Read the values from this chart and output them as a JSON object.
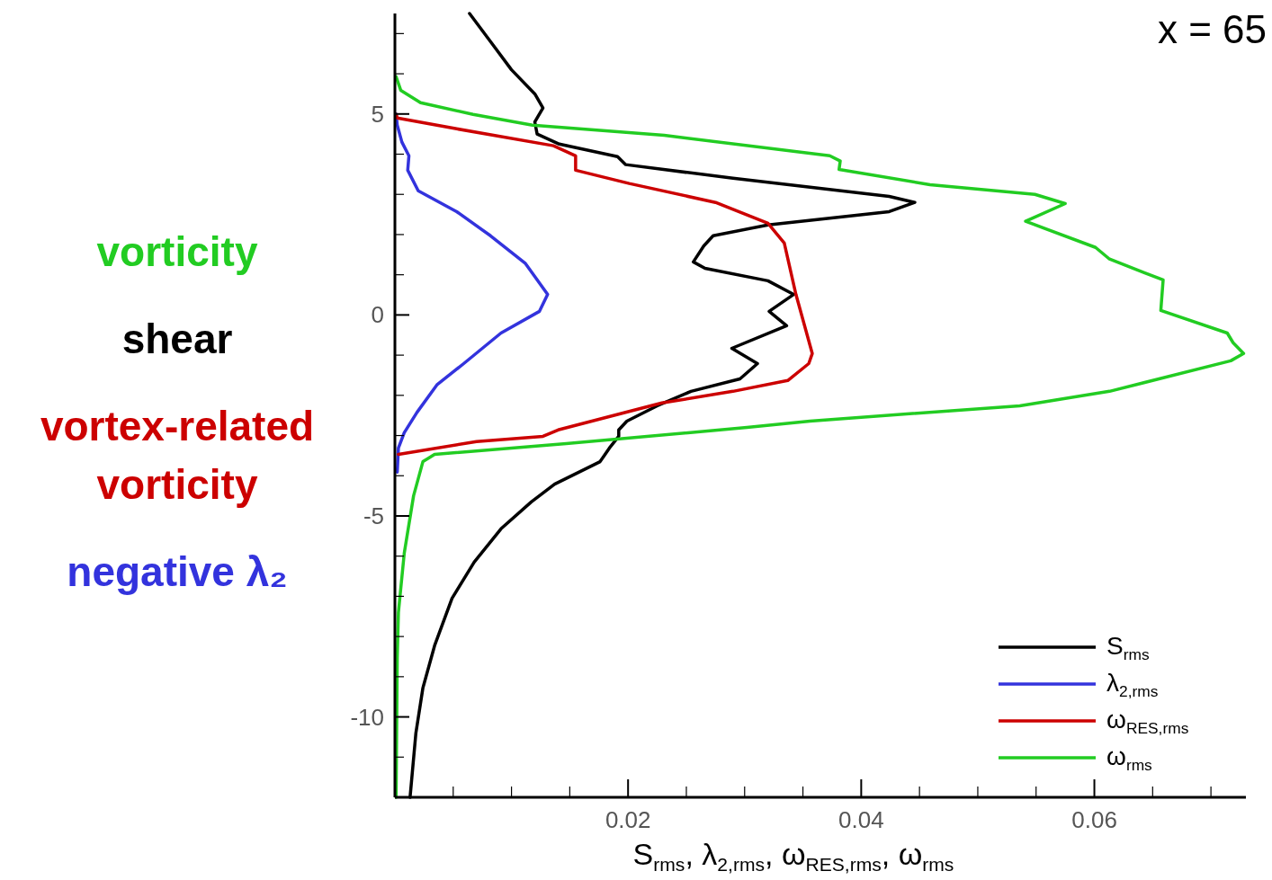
{
  "chart_data": {
    "type": "line",
    "title": "x = 65",
    "xlabel": "S$_{rms}$, λ$_{2,rms}$, ω$_{RES,rms}$, ω$_{rms}$",
    "annotations": [
      "vorticity",
      "shear",
      "vortex-related vorticity",
      "negative λ₂"
    ],
    "xlim": [
      0,
      0.073
    ],
    "ylim": [
      -12,
      7.5
    ],
    "xticks": [
      {
        "value": 0.005,
        "label": null
      },
      {
        "value": 0.01,
        "label": null
      },
      {
        "value": 0.015,
        "label": null
      },
      {
        "value": 0.02,
        "label": "0.02"
      },
      {
        "value": 0.025,
        "label": null
      },
      {
        "value": 0.03,
        "label": null
      },
      {
        "value": 0.035,
        "label": null
      },
      {
        "value": 0.04,
        "label": "0.04"
      },
      {
        "value": 0.045,
        "label": null
      },
      {
        "value": 0.05,
        "label": null
      },
      {
        "value": 0.055,
        "label": null
      },
      {
        "value": 0.06,
        "label": "0.06"
      },
      {
        "value": 0.065,
        "label": null
      },
      {
        "value": 0.07,
        "label": null
      }
    ],
    "yticks": [
      {
        "value": -11,
        "label": null
      },
      -10,
      {
        "value": -9,
        "label": null
      },
      {
        "value": -8,
        "label": null
      },
      {
        "value": -7,
        "label": null
      },
      {
        "value": -6,
        "label": null
      },
      -5,
      {
        "value": -4,
        "label": null
      },
      {
        "value": -3,
        "label": null
      },
      {
        "value": -2,
        "label": null
      },
      {
        "value": -1,
        "label": null
      },
      0,
      {
        "value": 1,
        "label": null
      },
      {
        "value": 2,
        "label": null
      },
      {
        "value": 3,
        "label": null
      },
      {
        "value": 4,
        "label": null
      },
      5,
      {
        "value": 6,
        "label": null
      },
      {
        "value": 7,
        "label": null
      }
    ],
    "grid": false,
    "legend": "bottom right",
    "marker": "none",
    "line_style": "solid",
    "series": [
      {
        "name": "S$_{rms}$",
        "color": "#000000",
        "x": [
          0.0064,
          0.0082,
          0.01,
          0.012,
          0.0127,
          0.012,
          0.0122,
          0.0141,
          0.0191,
          0.0198,
          0.029,
          0.0424,
          0.0446,
          0.0424,
          0.032,
          0.0273,
          0.0265,
          0.0256,
          0.0266,
          0.032,
          0.0342,
          0.0321,
          0.0336,
          0.0289,
          0.0311,
          0.0296,
          0.0254,
          0.0225,
          0.0199,
          0.0192,
          0.0192,
          0.0184,
          0.0176,
          0.0137,
          0.0117,
          0.0091,
          0.0068,
          0.0049,
          0.0034,
          0.0024,
          0.0018,
          0.0013
        ],
        "values": [
          7.5,
          6.8,
          6.1,
          5.5,
          5.15,
          4.8,
          4.5,
          4.25,
          3.94,
          3.74,
          3.4,
          2.95,
          2.8,
          2.57,
          2.24,
          1.97,
          1.72,
          1.32,
          1.16,
          0.85,
          0.51,
          0.09,
          -0.27,
          -0.83,
          -1.21,
          -1.59,
          -1.9,
          -2.26,
          -2.64,
          -2.86,
          -3.02,
          -3.31,
          -3.65,
          -4.21,
          -4.65,
          -5.32,
          -6.15,
          -7.05,
          -8.23,
          -9.28,
          -10.4,
          -12
        ]
      },
      {
        "name": "λ$_{2,rms}$",
        "color": "#3333dd",
        "x": [
          0.0001,
          0.0002,
          0.0006,
          0.0012,
          0.0011,
          0.002,
          0.0053,
          0.0082,
          0.0112,
          0.0131,
          0.0124,
          0.0091,
          0.0059,
          0.0036,
          0.0019,
          0.0008,
          0.0003,
          0.0002
        ],
        "values": [
          5,
          4.72,
          4.3,
          3.96,
          3.6,
          3.09,
          2.57,
          1.97,
          1.28,
          0.51,
          0.09,
          -0.45,
          -1.21,
          -1.74,
          -2.42,
          -2.93,
          -3.31,
          -3.91
        ]
      },
      {
        "name": "ω$_{RES,rms}$",
        "color": "#cc0000",
        "x": [
          0.0001,
          0.0002,
          0.0053,
          0.0136,
          0.0155,
          0.0155,
          0.0201,
          0.0275,
          0.032,
          0.0334,
          0.0344,
          0.0358,
          0.0355,
          0.0337,
          0.029,
          0.0229,
          0.014,
          0.0127,
          0.007,
          0.0003
        ],
        "values": [
          4.99,
          4.9,
          4.63,
          4.21,
          3.96,
          3.6,
          3.27,
          2.8,
          2.28,
          1.79,
          0.51,
          -0.96,
          -1.21,
          -1.63,
          -1.9,
          -2.19,
          -2.86,
          -3.02,
          -3.15,
          -3.47
        ]
      },
      {
        "name": "ω$_{rms}$",
        "color": "#22cc22",
        "x": [
          0.0001,
          0.0005,
          0.0022,
          0.0067,
          0.0118,
          0.0231,
          0.0373,
          0.0382,
          0.0381,
          0.0459,
          0.0549,
          0.0575,
          0.0541,
          0.0601,
          0.0613,
          0.0659,
          0.0657,
          0.0714,
          0.0719,
          0.0728,
          0.0717,
          0.0613,
          0.0536,
          0.0356,
          0.0302,
          0.0147,
          0.0034,
          0.0024,
          0.0016,
          0.0008,
          0.0003,
          0.0002,
          0.0001
        ],
        "values": [
          5.93,
          5.59,
          5.28,
          4.99,
          4.72,
          4.47,
          3.96,
          3.83,
          3.62,
          3.24,
          3,
          2.77,
          2.33,
          1.68,
          1.39,
          0.87,
          0.11,
          -0.45,
          -0.69,
          -0.96,
          -1.14,
          -1.9,
          -2.26,
          -2.64,
          -2.8,
          -3.2,
          -3.47,
          -3.65,
          -4.5,
          -5.93,
          -7.4,
          -8.52,
          -12
        ]
      }
    ]
  }
}
